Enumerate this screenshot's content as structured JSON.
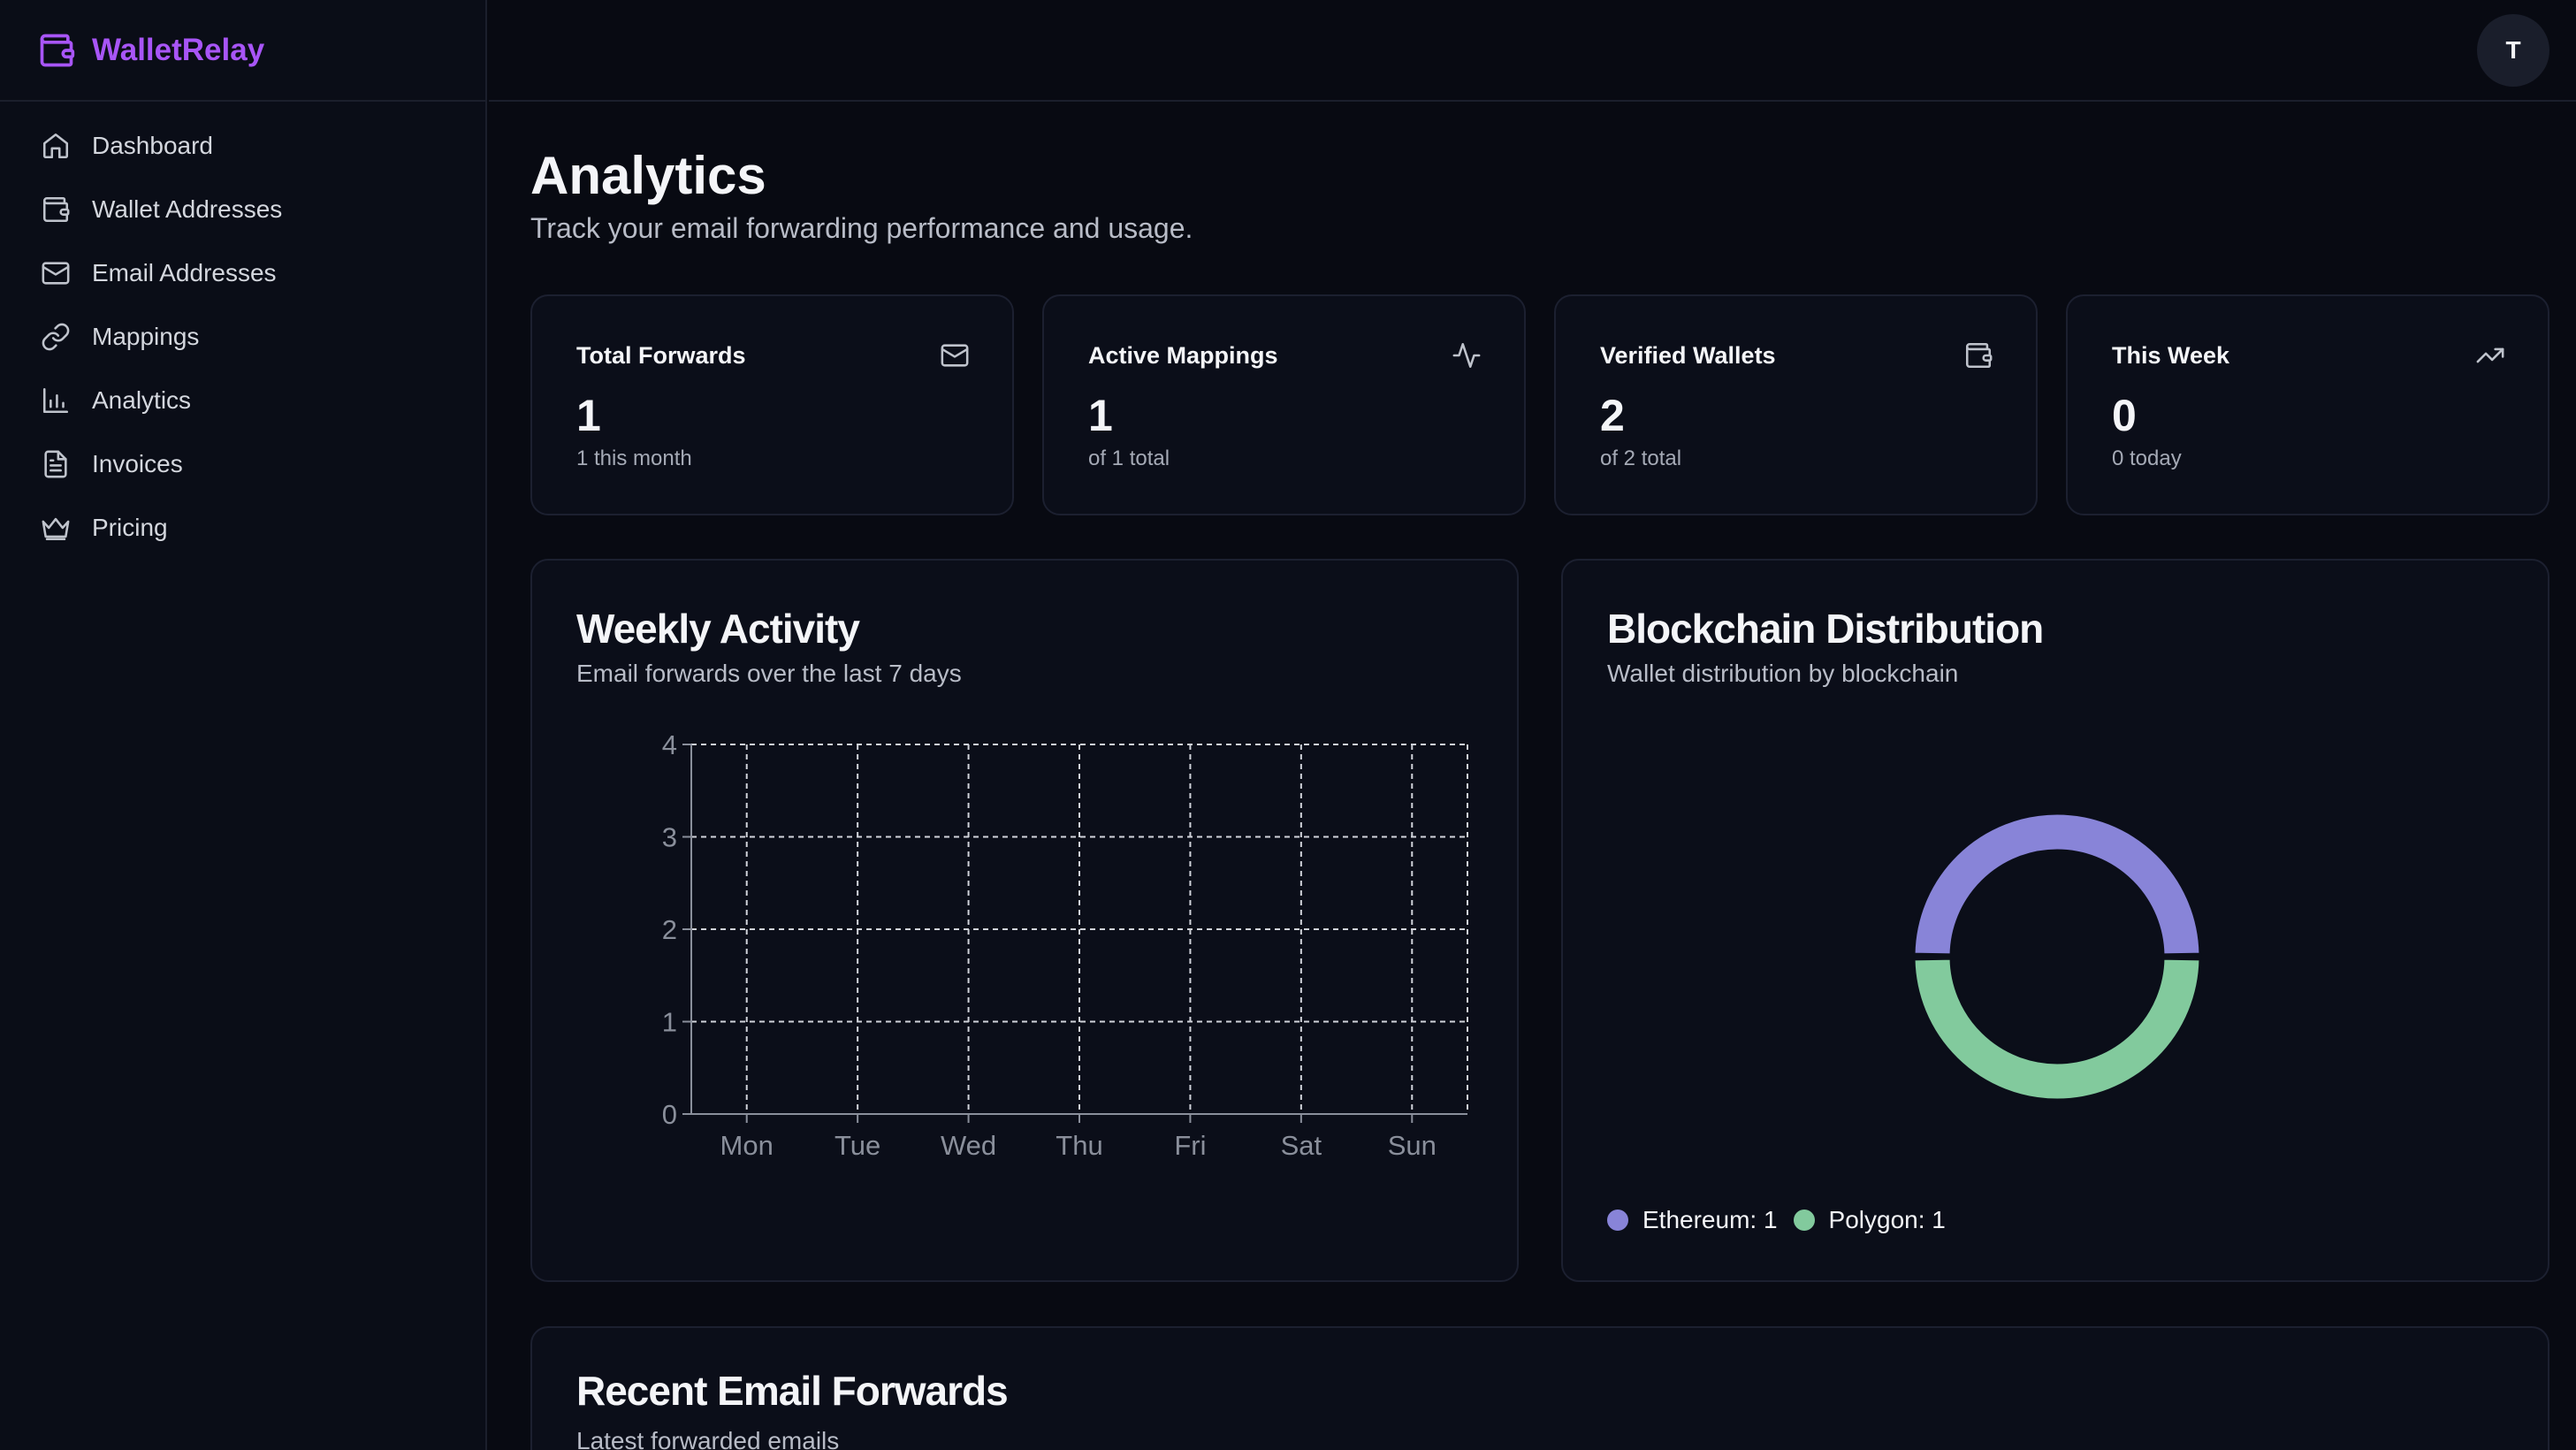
{
  "brand": {
    "name": "WalletRelay"
  },
  "sidebar": {
    "items": [
      {
        "label": "Dashboard",
        "icon": "home-icon"
      },
      {
        "label": "Wallet Addresses",
        "icon": "wallet-icon"
      },
      {
        "label": "Email Addresses",
        "icon": "mail-icon"
      },
      {
        "label": "Mappings",
        "icon": "link-icon"
      },
      {
        "label": "Analytics",
        "icon": "bar-chart-icon"
      },
      {
        "label": "Invoices",
        "icon": "file-text-icon"
      },
      {
        "label": "Pricing",
        "icon": "crown-icon"
      }
    ]
  },
  "user": {
    "avatar_initial": "T"
  },
  "page": {
    "title": "Analytics",
    "subtitle": "Track your email forwarding performance and usage."
  },
  "stats": [
    {
      "title": "Total Forwards",
      "value": "1",
      "note": "1 this month",
      "icon": "mail-icon"
    },
    {
      "title": "Active Mappings",
      "value": "1",
      "note": "of 1 total",
      "icon": "activity-icon"
    },
    {
      "title": "Verified Wallets",
      "value": "2",
      "note": "of 2 total",
      "icon": "wallet-icon"
    },
    {
      "title": "This Week",
      "value": "0",
      "note": "0 today",
      "icon": "trending-up-icon"
    }
  ],
  "weekly": {
    "title": "Weekly Activity",
    "subtitle": "Email forwards over the last 7 days"
  },
  "blockchain": {
    "title": "Blockchain Distribution",
    "subtitle": "Wallet distribution by blockchain",
    "legend": [
      {
        "label": "Ethereum: 1",
        "color": "#8884d8"
      },
      {
        "label": "Polygon: 1",
        "color": "#82ca9d"
      }
    ]
  },
  "recent": {
    "title": "Recent Email Forwards",
    "subtitle": "Latest forwarded emails"
  },
  "chart_data": [
    {
      "type": "bar",
      "categories": [
        "Mon",
        "Tue",
        "Wed",
        "Thu",
        "Fri",
        "Sat",
        "Sun"
      ],
      "values": [
        0,
        0,
        0,
        0,
        0,
        0,
        0
      ],
      "title": "",
      "xlabel": "",
      "ylabel": "",
      "ylim": [
        0,
        4
      ],
      "yticks": [
        "0",
        "1",
        "2",
        "3",
        "4"
      ],
      "grid": true,
      "grid_style": "dashed"
    },
    {
      "type": "pie",
      "donut": true,
      "labels": [
        "Ethereum",
        "Polygon"
      ],
      "values": [
        1,
        1
      ],
      "colors": [
        "#8884d8",
        "#82ca9d"
      ],
      "legend": "bottom-left"
    }
  ]
}
